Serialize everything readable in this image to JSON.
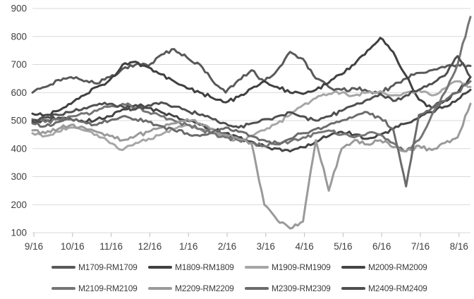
{
  "chart_data": {
    "type": "line",
    "title": "",
    "xlabel": "",
    "ylabel": "",
    "x_labels": [
      "9/16",
      "10/16",
      "11/16",
      "12/16",
      "1/16",
      "2/16",
      "3/16",
      "4/16",
      "5/16",
      "6/16",
      "7/16",
      "8/16"
    ],
    "y_ticks": [
      900,
      800,
      700,
      600,
      500,
      400,
      300,
      200,
      100
    ],
    "ylim": [
      100,
      900
    ],
    "grid": "horizontal",
    "legend_position": "bottom",
    "legend_rows": 2,
    "colors": {
      "gridline": "#d9d9d9",
      "tick_mark": "#bfbfbf",
      "axis_text": "#3f3f3f",
      "background": "#ffffff"
    },
    "points_per_month": 3,
    "series": [
      {
        "name": "M1709-RM1709",
        "color": "#595959",
        "values": [
          600,
          620,
          645,
          655,
          640,
          632,
          655,
          685,
          700,
          695,
          735,
          755,
          725,
          700,
          640,
          600,
          645,
          680,
          640,
          680,
          745,
          720,
          650,
          620,
          610,
          615,
          605,
          600,
          625,
          650,
          670,
          680,
          690,
          700,
          695
        ]
      },
      {
        "name": "M1809-RM1809",
        "color": "#404040",
        "values": [
          525,
          520,
          535,
          560,
          590,
          620,
          645,
          700,
          710,
          690,
          665,
          640,
          615,
          600,
          580,
          565,
          585,
          615,
          640,
          620,
          600,
          595,
          610,
          635,
          665,
          700,
          750,
          795,
          745,
          660,
          575,
          545,
          570,
          600,
          655
        ]
      },
      {
        "name": "M1909-RM1909",
        "color": "#a6a6a6",
        "values": [
          455,
          445,
          460,
          475,
          465,
          450,
          420,
          395,
          420,
          435,
          450,
          470,
          485,
          470,
          455,
          440,
          430,
          445,
          465,
          490,
          520,
          555,
          580,
          595,
          600,
          590,
          600,
          605,
          590,
          600,
          610,
          590,
          615,
          640,
          620
        ]
      },
      {
        "name": "M2009-RM2009",
        "color": "#454545",
        "values": [
          495,
          500,
          510,
          505,
          495,
          505,
          515,
          540,
          555,
          545,
          530,
          515,
          500,
          485,
          470,
          455,
          440,
          425,
          410,
          400,
          390,
          405,
          425,
          445,
          460,
          450,
          435,
          450,
          470,
          490,
          510,
          530,
          550,
          575,
          610
        ]
      },
      {
        "name": "M2109-RM2109",
        "color": "#757575",
        "values": [
          505,
          495,
          505,
          515,
          525,
          535,
          550,
          560,
          545,
          530,
          515,
          500,
          485,
          470,
          455,
          440,
          430,
          420,
          410,
          415,
          425,
          440,
          455,
          465,
          450,
          440,
          455,
          450,
          420,
          390,
          430,
          520,
          600,
          700,
          870
        ]
      },
      {
        "name": "M2209-RM2209",
        "color": "#9a9a9a",
        "values": [
          465,
          455,
          470,
          485,
          475,
          460,
          445,
          430,
          445,
          460,
          475,
          490,
          505,
          490,
          470,
          450,
          435,
          420,
          200,
          145,
          115,
          140,
          430,
          250,
          400,
          430,
          415,
          430,
          405,
          390,
          410,
          395,
          420,
          440,
          560
        ]
      },
      {
        "name": "M2309-RM2309",
        "color": "#6b6b6b",
        "values": [
          490,
          480,
          495,
          505,
          495,
          485,
          500,
          515,
          505,
          495,
          480,
          465,
          455,
          445,
          460,
          475,
          460,
          445,
          430,
          420,
          435,
          455,
          470,
          485,
          500,
          515,
          530,
          510,
          470,
          265,
          520,
          545,
          570,
          600,
          640
        ]
      },
      {
        "name": "M2409-RM2409",
        "color": "#4f4f4f",
        "values": [
          500,
          510,
          520,
          530,
          545,
          555,
          560,
          550,
          540,
          555,
          565,
          550,
          535,
          520,
          505,
          490,
          475,
          490,
          505,
          515,
          530,
          515,
          500,
          515,
          535,
          555,
          575,
          595,
          570,
          590,
          610,
          630,
          660,
          730,
          655
        ]
      }
    ]
  }
}
